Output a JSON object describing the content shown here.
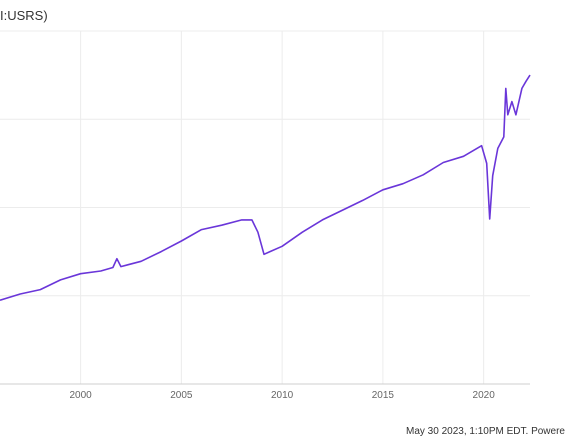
{
  "legend": {
    "label": "I:USRS)"
  },
  "footer": {
    "text": "May 30 2023, 1:10PM EDT. Powere"
  },
  "chart_data": {
    "type": "line",
    "title": "",
    "xlabel": "",
    "ylabel": "",
    "grid": true,
    "x_ticks": [
      2000,
      2005,
      2010,
      2015,
      2020
    ],
    "xlim": [
      1996,
      2022.3
    ],
    "ylim": [
      0,
      4
    ],
    "colors": {
      "line": "#6a36d9",
      "grid": "#ececec",
      "axis": "#cfcfcf"
    },
    "series": [
      {
        "points": [
          [
            1996.0,
            0.95
          ],
          [
            1997.0,
            1.02
          ],
          [
            1998.0,
            1.07
          ],
          [
            1999.0,
            1.18
          ],
          [
            2000.0,
            1.25
          ],
          [
            2001.0,
            1.28
          ],
          [
            2001.6,
            1.32
          ],
          [
            2001.8,
            1.42
          ],
          [
            2002.0,
            1.33
          ],
          [
            2003.0,
            1.39
          ],
          [
            2004.0,
            1.5
          ],
          [
            2005.0,
            1.62
          ],
          [
            2006.0,
            1.75
          ],
          [
            2007.0,
            1.8
          ],
          [
            2008.0,
            1.86
          ],
          [
            2008.5,
            1.86
          ],
          [
            2008.8,
            1.72
          ],
          [
            2009.1,
            1.47
          ],
          [
            2009.4,
            1.5
          ],
          [
            2010.0,
            1.56
          ],
          [
            2011.0,
            1.72
          ],
          [
            2012.0,
            1.86
          ],
          [
            2013.0,
            1.97
          ],
          [
            2014.0,
            2.08
          ],
          [
            2015.0,
            2.2
          ],
          [
            2016.0,
            2.27
          ],
          [
            2017.0,
            2.37
          ],
          [
            2018.0,
            2.51
          ],
          [
            2019.0,
            2.58
          ],
          [
            2019.9,
            2.7
          ],
          [
            2020.15,
            2.5
          ],
          [
            2020.3,
            1.87
          ],
          [
            2020.45,
            2.36
          ],
          [
            2020.7,
            2.67
          ],
          [
            2021.0,
            2.8
          ],
          [
            2021.1,
            3.35
          ],
          [
            2021.2,
            3.05
          ],
          [
            2021.4,
            3.2
          ],
          [
            2021.6,
            3.05
          ],
          [
            2021.9,
            3.35
          ],
          [
            2022.1,
            3.43
          ],
          [
            2022.3,
            3.5
          ]
        ]
      }
    ]
  }
}
